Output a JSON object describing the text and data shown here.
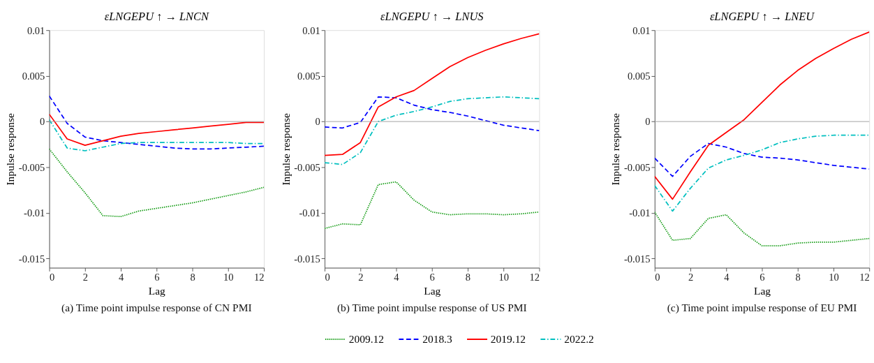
{
  "chart_data": [
    {
      "type": "line",
      "title": "εLNGEPU ↑ → LNCN",
      "subtitle": "(a) Time point impulse response of CN PMI",
      "xlabel": "Lag",
      "ylabel": "Inpulse response",
      "x": [
        0,
        1,
        2,
        3,
        4,
        5,
        6,
        7,
        8,
        9,
        10,
        11,
        12
      ],
      "xlim": [
        0,
        12
      ],
      "xticks": [
        0,
        2,
        4,
        6,
        8,
        10,
        12
      ],
      "ylim": [
        -0.016,
        0.01
      ],
      "yticks": [
        -0.015,
        -0.01,
        -0.005,
        0,
        0.005,
        0.01
      ],
      "grid": false,
      "legend": false,
      "ref_lines": [
        {
          "axis": "y",
          "value": 0,
          "color": "#a0a0a0"
        }
      ],
      "series": [
        {
          "color": "#109a10",
          "line_style": "dotted",
          "values": [
            -0.003,
            -0.0055,
            -0.0078,
            -0.0103,
            -0.0104,
            -0.0098,
            -0.0095,
            -0.0092,
            -0.0089,
            -0.0085,
            -0.0081,
            -0.0077,
            -0.0072
          ]
        },
        {
          "color": "#0000ff",
          "line_style": "dashed",
          "values": [
            0.0028,
            -0.0002,
            -0.0017,
            -0.0021,
            -0.0023,
            -0.0025,
            -0.0027,
            -0.0029,
            -0.003,
            -0.003,
            -0.0029,
            -0.0028,
            -0.0027
          ]
        },
        {
          "color": "#ff0000",
          "line_style": "solid",
          "values": [
            0.0008,
            -0.0019,
            -0.0026,
            -0.0021,
            -0.0016,
            -0.0013,
            -0.0011,
            -0.0009,
            -0.0007,
            -0.0005,
            -0.0003,
            -0.0001,
            -0.0001
          ]
        },
        {
          "color": "#00bfbf",
          "line_style": "dashdot",
          "values": [
            0.0002,
            -0.0029,
            -0.0032,
            -0.0028,
            -0.0024,
            -0.0023,
            -0.0023,
            -0.0023,
            -0.0023,
            -0.0023,
            -0.0023,
            -0.0024,
            -0.0024
          ]
        }
      ]
    },
    {
      "type": "line",
      "title": "εLNGEPU ↑ → LNUS",
      "subtitle": "(b) Time point impulse response of US PMI",
      "xlabel": "Lag",
      "ylabel": "Inpulse response",
      "x": [
        0,
        1,
        2,
        3,
        4,
        5,
        6,
        7,
        8,
        9,
        10,
        11,
        12
      ],
      "xlim": [
        0,
        12
      ],
      "xticks": [
        0,
        2,
        4,
        6,
        8,
        10,
        12
      ],
      "ylim": [
        -0.016,
        0.01
      ],
      "yticks": [
        -0.015,
        -0.01,
        -0.005,
        0,
        0.005,
        0.01
      ],
      "grid": false,
      "legend": "bottom",
      "ref_lines": [
        {
          "axis": "y",
          "value": 0,
          "color": "#a0a0a0"
        }
      ],
      "series": [
        {
          "name": "2009.12",
          "color": "#109a10",
          "line_style": "dotted",
          "values": [
            -0.0117,
            -0.0112,
            -0.0113,
            -0.0069,
            -0.0066,
            -0.0086,
            -0.0099,
            -0.0102,
            -0.0101,
            -0.0101,
            -0.0102,
            -0.0101,
            -0.0099
          ]
        },
        {
          "name": "2018.3",
          "color": "#0000ff",
          "line_style": "dashed",
          "values": [
            -0.0006,
            -0.0007,
            -0.0001,
            0.0027,
            0.0026,
            0.0018,
            0.0013,
            0.001,
            0.0006,
            0.0001,
            -0.0004,
            -0.0007,
            -0.001
          ]
        },
        {
          "name": "2019.12",
          "color": "#ff0000",
          "line_style": "solid",
          "values": [
            -0.0037,
            -0.0036,
            -0.0023,
            0.0016,
            0.0027,
            0.0034,
            0.0047,
            0.006,
            0.007,
            0.0078,
            0.0085,
            0.0091,
            0.0096
          ]
        },
        {
          "name": "2022.2",
          "color": "#00bfbf",
          "line_style": "dashdot",
          "values": [
            -0.0045,
            -0.0047,
            -0.0034,
            0,
            0.0007,
            0.0011,
            0.0016,
            0.0022,
            0.0025,
            0.0026,
            0.0027,
            0.0026,
            0.0025
          ]
        }
      ]
    },
    {
      "type": "line",
      "title": "εLNGEPU ↑ → LNEU",
      "subtitle": "(c) Time point impulse response of EU PMI",
      "xlabel": "Lag",
      "ylabel": "Inpulse response",
      "x": [
        0,
        1,
        2,
        3,
        4,
        5,
        6,
        7,
        8,
        9,
        10,
        11,
        12
      ],
      "xlim": [
        0,
        12
      ],
      "xticks": [
        0,
        2,
        4,
        6,
        8,
        10,
        12
      ],
      "ylim": [
        -0.016,
        0.01
      ],
      "yticks": [
        -0.015,
        -0.01,
        -0.005,
        0,
        0.005,
        0.01
      ],
      "grid": false,
      "legend": false,
      "ref_lines": [
        {
          "axis": "y",
          "value": 0,
          "color": "#a0a0a0"
        }
      ],
      "series": [
        {
          "color": "#109a10",
          "line_style": "dotted",
          "values": [
            -0.0099,
            -0.013,
            -0.0128,
            -0.0106,
            -0.0102,
            -0.0122,
            -0.0136,
            -0.0136,
            -0.0133,
            -0.0132,
            -0.0132,
            -0.013,
            -0.0128
          ]
        },
        {
          "color": "#0000ff",
          "line_style": "dashed",
          "values": [
            -0.004,
            -0.006,
            -0.0038,
            -0.0024,
            -0.0028,
            -0.0035,
            -0.0039,
            -0.004,
            -0.0042,
            -0.0045,
            -0.0048,
            -0.005,
            -0.0052
          ]
        },
        {
          "color": "#ff0000",
          "line_style": "solid",
          "values": [
            -0.006,
            -0.0085,
            -0.0055,
            -0.0026,
            -0.0012,
            0.0002,
            0.0021,
            0.004,
            0.0056,
            0.0069,
            0.008,
            0.009,
            0.0098
          ]
        },
        {
          "color": "#00bfbf",
          "line_style": "dashdot",
          "values": [
            -0.007,
            -0.0098,
            -0.0073,
            -0.0051,
            -0.0042,
            -0.0037,
            -0.0031,
            -0.0023,
            -0.0019,
            -0.0016,
            -0.0015,
            -0.0015,
            -0.0015
          ]
        }
      ]
    }
  ]
}
